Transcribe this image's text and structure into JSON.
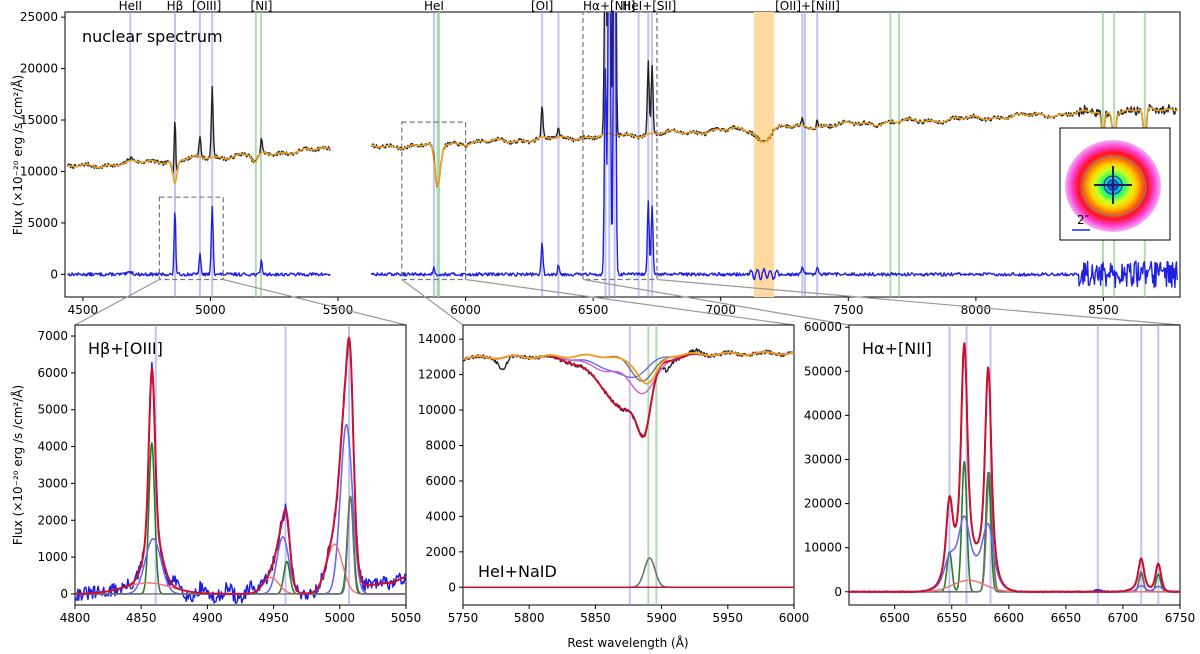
{
  "chart_data": [
    {
      "type": "line",
      "title": "nuclear spectrum",
      "ylabel": "Flux (×10⁻²⁰ erg /s /cm²/Å)",
      "xlim": [
        4430,
        8800
      ],
      "ylim": [
        -2200,
        25500
      ],
      "xticks": [
        4500,
        5000,
        5500,
        6000,
        6500,
        7000,
        7500,
        8000,
        8500
      ],
      "yticks": [
        0,
        5000,
        10000,
        15000,
        20000,
        25000
      ],
      "gap": [
        5470,
        5630
      ],
      "line_labels": [
        {
          "text": "HeII",
          "x": 4686
        },
        {
          "text": "Hβ",
          "x": 4861
        },
        {
          "text": "[OIII]",
          "x": 4985
        },
        {
          "text": "[NI]",
          "x": 5200
        },
        {
          "text": "HeI",
          "x": 5876
        },
        {
          "text": "[OI]",
          "x": 6300
        },
        {
          "text": "Hα+[NII]",
          "x": 6563
        },
        {
          "text": "HeI+[SII]",
          "x": 6720
        },
        {
          "text": "[OII]+[NiII]",
          "x": 7340
        }
      ],
      "blue_lines": [
        4686,
        4861,
        4959,
        5007,
        5876,
        6300,
        6364,
        6548,
        6563,
        6584,
        6678,
        6716,
        6731,
        7320,
        7330,
        7378
      ],
      "green_lines": [
        5178,
        5198,
        5890,
        5896,
        7665,
        7699,
        8498,
        8542,
        8662
      ],
      "shaded_band": [
        7130,
        7210
      ],
      "zoom_boxes": [
        {
          "x": [
            4800,
            5050
          ],
          "y": [
            -500,
            7500
          ]
        },
        {
          "x": [
            5750,
            6000
          ],
          "y": [
            -500,
            14800
          ]
        },
        {
          "x": [
            6460,
            6750
          ],
          "y": [
            -500,
            25500
          ]
        }
      ],
      "inset_scale_label": "2″",
      "series": [
        {
          "color": "#222222",
          "kind": "observed"
        },
        {
          "color": "#f0a020",
          "kind": "stellar-model"
        },
        {
          "color": "#2020e0",
          "kind": "emission-residual"
        }
      ]
    },
    {
      "type": "line",
      "title": "Hβ+[OIII]",
      "ylabel": "Flux (×10⁻²⁰ erg /s /cm²/Å)",
      "xlim": [
        4800,
        5050
      ],
      "ylim": [
        -300,
        7300
      ],
      "xticks": [
        4800,
        4850,
        4900,
        4950,
        5000,
        5050
      ],
      "yticks": [
        0,
        1000,
        2000,
        3000,
        4000,
        5000,
        6000,
        7000
      ],
      "blue_lines": [
        4861,
        4959,
        5007
      ],
      "green_lines": []
    },
    {
      "type": "line",
      "title": "HeI+NaID",
      "xlabel": "Rest wavelength (Å)",
      "xlim": [
        5750,
        6000
      ],
      "ylim": [
        -1000,
        14800
      ],
      "xticks": [
        5750,
        5800,
        5850,
        5900,
        5950,
        6000
      ],
      "yticks": [
        0,
        2000,
        4000,
        6000,
        8000,
        10000,
        12000,
        14000
      ],
      "blue_lines": [
        5876
      ],
      "green_lines": [
        5890,
        5896
      ]
    },
    {
      "type": "line",
      "title": "Hα+[NII]",
      "xlim": [
        6460,
        6750
      ],
      "ylim": [
        -3000,
        60500
      ],
      "xticks": [
        6500,
        6550,
        6600,
        6650,
        6700,
        6750
      ],
      "yticks": [
        0,
        10000,
        20000,
        30000,
        40000,
        50000,
        60000
      ],
      "blue_lines": [
        6548,
        6563,
        6584,
        6678,
        6716,
        6731
      ],
      "green_lines": []
    }
  ]
}
